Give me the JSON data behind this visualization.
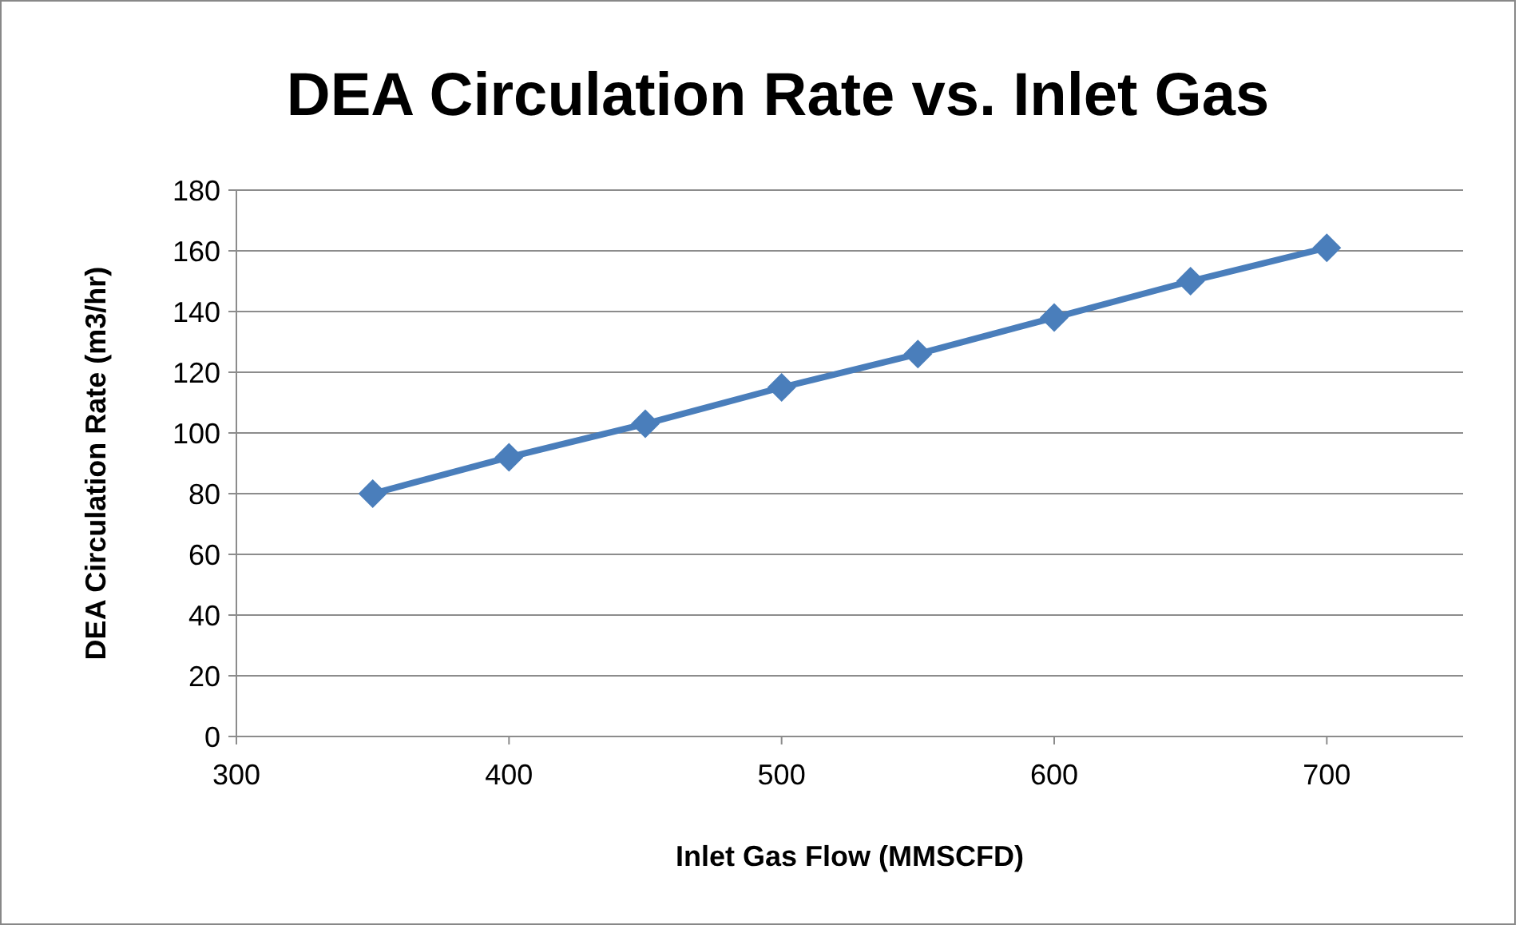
{
  "chart_data": {
    "type": "line",
    "title": "DEA Circulation Rate vs. Inlet Gas",
    "xlabel": "Inlet Gas Flow (MMSCFD)",
    "ylabel": "DEA Circulation Rate (m3/hr)",
    "x": [
      350,
      400,
      450,
      500,
      550,
      600,
      650,
      700
    ],
    "series": [
      {
        "color": "#4a7ebb",
        "values": [
          80,
          92,
          103,
          115,
          126,
          138,
          150,
          161
        ]
      }
    ],
    "xlim": [
      300,
      750
    ],
    "xticks": [
      300,
      400,
      500,
      600,
      700
    ],
    "ylim": [
      0,
      180
    ],
    "yticks": [
      0,
      20,
      40,
      60,
      80,
      100,
      120,
      140,
      160,
      180
    ],
    "grid": "y",
    "marker": "diamond",
    "line_style": "solid"
  }
}
